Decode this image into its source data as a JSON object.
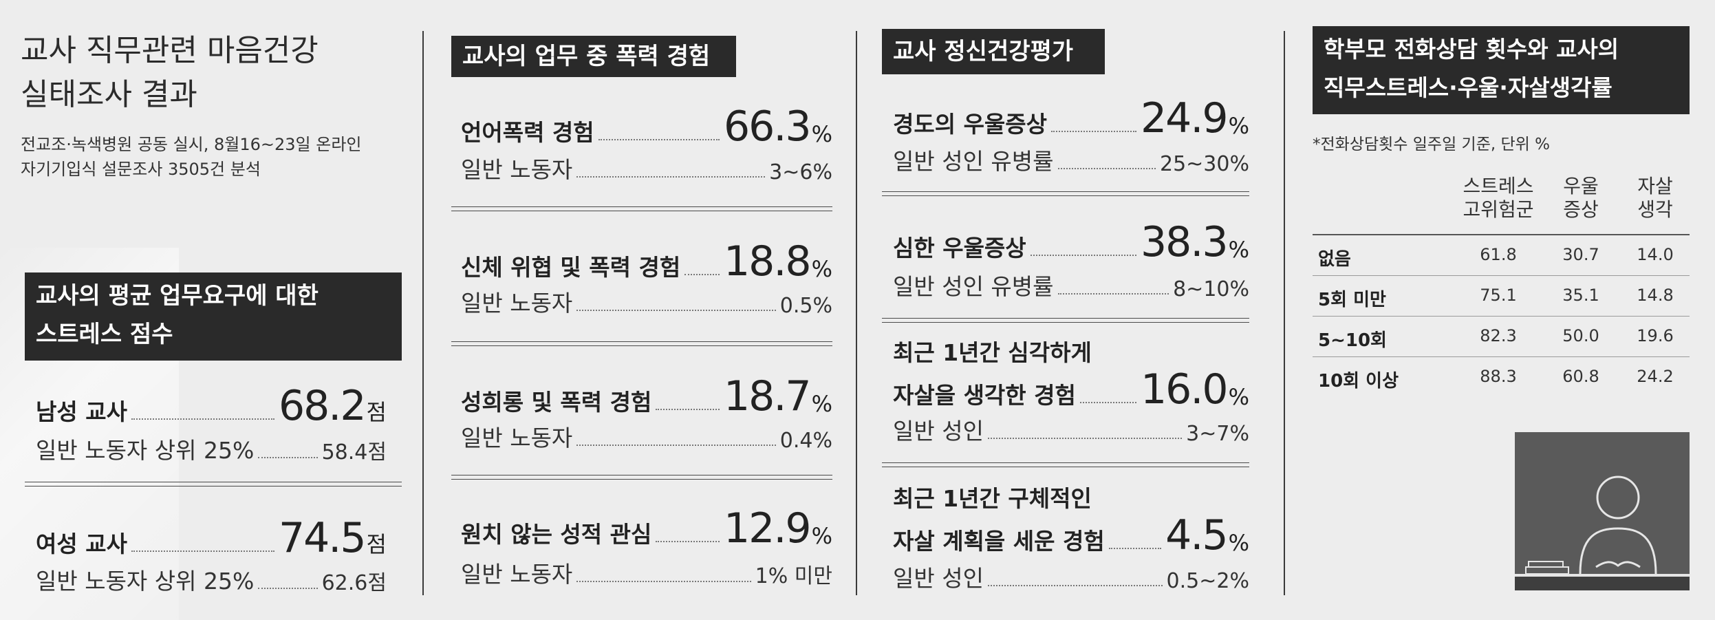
{
  "col1": {
    "title_line1": "교사 직무관련 마음건강",
    "title_line2": "실태조사 결과",
    "sub_line1": "전교조·녹색병원 공동 실시, 8월16~23일 온라인",
    "sub_line2": "자기기입식 설문조사 3505건 분석",
    "box_line1": "교사의 평균 업무요구에 대한",
    "box_line2": "스트레스 점수",
    "items": [
      {
        "label": "남성 교사",
        "value": "68.2",
        "unit": "점",
        "ref_label": "일반 노동자 상위 25%",
        "ref_value": "58.4점"
      },
      {
        "label": "여성 교사",
        "value": "74.5",
        "unit": "점",
        "ref_label": "일반 노동자 상위 25%",
        "ref_value": "62.6점"
      }
    ]
  },
  "col2": {
    "header": "교사의 업무 중 폭력 경험",
    "items": [
      {
        "label": "언어폭력 경험",
        "value": "66.3",
        "unit": "%",
        "ref_label": "일반 노동자",
        "ref_value": "3~6%"
      },
      {
        "label": "신체 위협 및 폭력 경험",
        "value": "18.8",
        "unit": "%",
        "ref_label": "일반 노동자",
        "ref_value": "0.5%"
      },
      {
        "label": "성희롱 및 폭력 경험",
        "value": "18.7",
        "unit": "%",
        "ref_label": "일반 노동자",
        "ref_value": "0.4%"
      },
      {
        "label": "원치 않는 성적 관심",
        "value": "12.9",
        "unit": "%",
        "ref_label": "일반 노동자",
        "ref_value": "1% 미만"
      }
    ]
  },
  "col3": {
    "header": "교사 정신건강평가",
    "items": [
      {
        "label": "경도의 우울증상",
        "value": "24.9",
        "unit": "%",
        "ref_label": "일반 성인 유병률",
        "ref_value": "25~30%"
      },
      {
        "label": "심한 우울증상",
        "value": "38.3",
        "unit": "%",
        "ref_label": "일반 성인 유병률",
        "ref_value": "8~10%"
      },
      {
        "label_line1": "최근 1년간 심각하게",
        "label": "자살을 생각한 경험",
        "value": "16.0",
        "unit": "%",
        "ref_label": "일반 성인",
        "ref_value": "3~7%"
      },
      {
        "label_line1": "최근 1년간 구체적인",
        "label": "자살 계획을 세운 경험",
        "value": "4.5",
        "unit": "%",
        "ref_label": "일반 성인",
        "ref_value": "0.5~2%"
      }
    ]
  },
  "col4": {
    "header_line1": "학부모 전화상담 횟수와 교사의",
    "header_line2": "직무스트레스·우울·자살생각률",
    "note": "*전화상담횟수 일주일 기준, 단위 %",
    "columns": [
      {
        "line1": "스트레스",
        "line2": "고위험군"
      },
      {
        "line1": "우울",
        "line2": "증상"
      },
      {
        "line1": "자살",
        "line2": "생각"
      }
    ],
    "rows": [
      {
        "label": "없음",
        "values": [
          "61.8",
          "30.7",
          "14.0"
        ]
      },
      {
        "label": "5회 미만",
        "values": [
          "75.1",
          "35.1",
          "14.8"
        ]
      },
      {
        "label": "5~10회",
        "values": [
          "82.3",
          "50.0",
          "19.6"
        ]
      },
      {
        "label": "10회 이상",
        "values": [
          "88.3",
          "60.8",
          "24.2"
        ]
      }
    ]
  },
  "colors": {
    "background": "#ededed",
    "header_bg": "#2a2a2a",
    "header_text": "#ffffff",
    "illustration": "#5a5a5a"
  },
  "icons": {
    "illustration": "teacher-at-desk-icon"
  }
}
